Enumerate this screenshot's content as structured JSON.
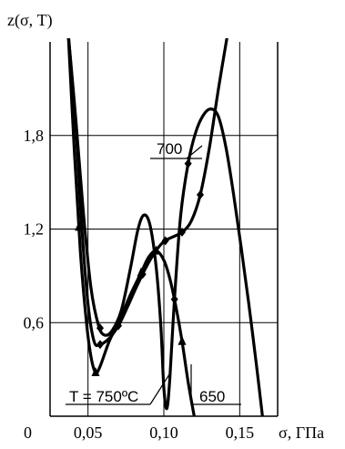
{
  "chart_data": {
    "type": "line",
    "ylabel": "z(σ, T)",
    "xlabel": "σ, ГПа",
    "xlim": [
      0.025,
      0.175
    ],
    "ylim": [
      0.0,
      2.4
    ],
    "x_ticks": [
      {
        "value": 0.05,
        "label": "0,05"
      },
      {
        "value": 0.1,
        "label": "0,10"
      },
      {
        "value": 0.15,
        "label": "0,15"
      }
    ],
    "x_origin_label": "0",
    "y_ticks": [
      {
        "value": 0.6,
        "label": "0,6"
      },
      {
        "value": 1.2,
        "label": "1,2"
      },
      {
        "value": 1.8,
        "label": "1,8"
      }
    ],
    "grid": true,
    "series": [
      {
        "name": "700",
        "marker": "diamond",
        "points": [
          [
            0.037,
            2.45
          ],
          [
            0.042,
            1.9
          ],
          [
            0.047,
            1.3
          ],
          [
            0.052,
            0.82
          ],
          [
            0.057,
            0.58
          ],
          [
            0.061,
            0.52
          ],
          [
            0.066,
            0.55
          ],
          [
            0.072,
            0.68
          ],
          [
            0.078,
            0.95
          ],
          [
            0.083,
            1.2
          ],
          [
            0.087,
            1.29
          ],
          [
            0.091,
            1.22
          ],
          [
            0.095,
            0.95
          ],
          [
            0.098,
            0.58
          ],
          [
            0.1,
            0.18
          ],
          [
            0.102,
            0.05
          ],
          [
            0.104,
            0.25
          ],
          [
            0.107,
            0.75
          ],
          [
            0.111,
            1.28
          ],
          [
            0.116,
            1.62
          ],
          [
            0.121,
            1.82
          ],
          [
            0.126,
            1.93
          ],
          [
            0.131,
            1.97
          ],
          [
            0.136,
            1.92
          ],
          [
            0.141,
            1.72
          ],
          [
            0.146,
            1.42
          ],
          [
            0.151,
            1.08
          ],
          [
            0.156,
            0.72
          ],
          [
            0.161,
            0.33
          ],
          [
            0.165,
            0.0
          ]
        ],
        "markers_x": [
          0.058,
          0.107,
          0.116
        ]
      },
      {
        "name": "650",
        "marker": "diamond",
        "points": [
          [
            0.037,
            2.45
          ],
          [
            0.042,
            1.85
          ],
          [
            0.046,
            1.2
          ],
          [
            0.05,
            0.72
          ],
          [
            0.054,
            0.48
          ],
          [
            0.058,
            0.46
          ],
          [
            0.064,
            0.5
          ],
          [
            0.07,
            0.58
          ],
          [
            0.076,
            0.7
          ],
          [
            0.082,
            0.83
          ],
          [
            0.088,
            0.95
          ],
          [
            0.094,
            1.05
          ],
          [
            0.1,
            1.12
          ],
          [
            0.106,
            1.15
          ],
          [
            0.112,
            1.18
          ],
          [
            0.118,
            1.25
          ],
          [
            0.124,
            1.42
          ],
          [
            0.13,
            1.72
          ],
          [
            0.136,
            2.1
          ],
          [
            0.142,
            2.45
          ]
        ],
        "markers_x": [
          0.058,
          0.07,
          0.086,
          0.101,
          0.112,
          0.124
        ]
      },
      {
        "name": "T = 750ºC",
        "marker": "triangle",
        "points": [
          [
            0.037,
            2.45
          ],
          [
            0.041,
            1.7
          ],
          [
            0.045,
            1.05
          ],
          [
            0.049,
            0.6
          ],
          [
            0.052,
            0.38
          ],
          [
            0.055,
            0.28
          ],
          [
            0.058,
            0.32
          ],
          [
            0.064,
            0.48
          ],
          [
            0.071,
            0.62
          ],
          [
            0.078,
            0.78
          ],
          [
            0.085,
            0.92
          ],
          [
            0.09,
            1.02
          ],
          [
            0.095,
            1.06
          ],
          [
            0.1,
            1.0
          ],
          [
            0.104,
            0.88
          ],
          [
            0.108,
            0.7
          ],
          [
            0.112,
            0.48
          ],
          [
            0.116,
            0.22
          ],
          [
            0.12,
            0.0
          ]
        ],
        "markers_x": [
          0.044,
          0.055,
          0.085,
          0.095,
          0.112
        ]
      }
    ]
  }
}
